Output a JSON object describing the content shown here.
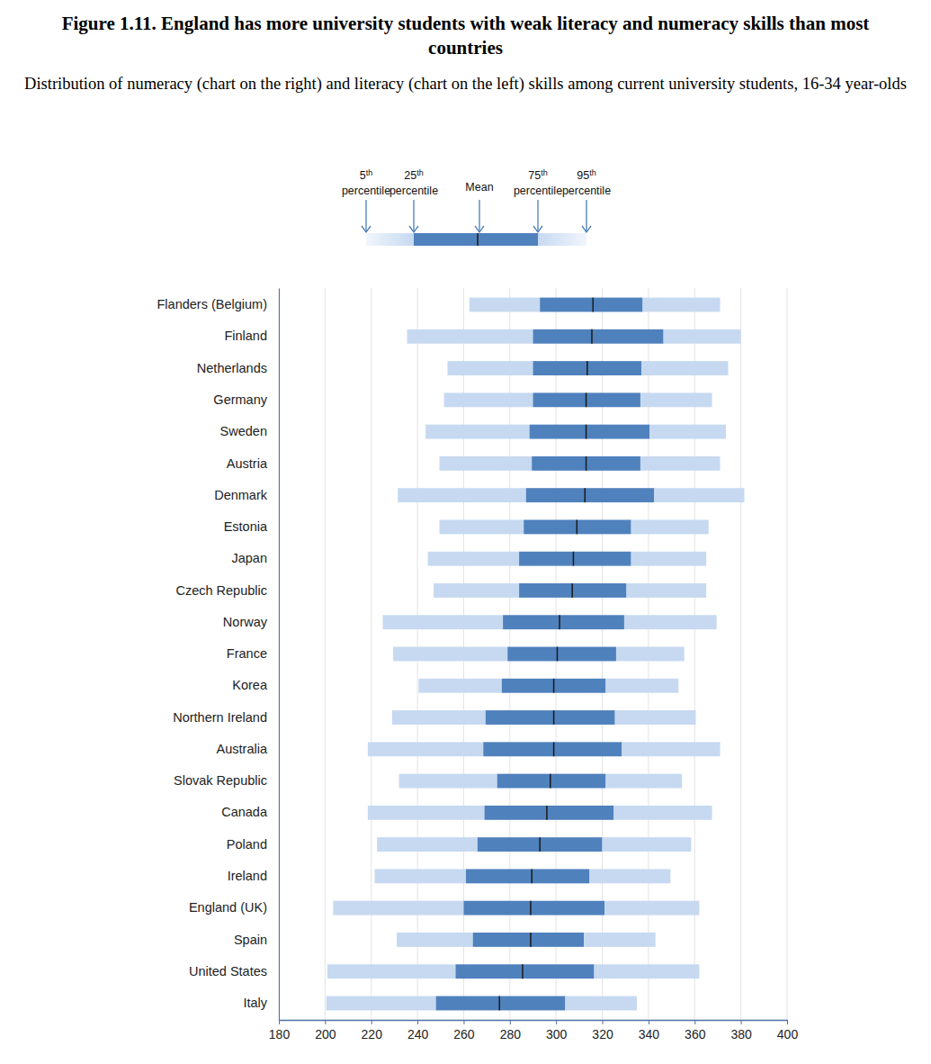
{
  "chart_data": {
    "type": "box",
    "title": "Figure 1.11. England has more university students with weak literacy and numeracy skills than most countries",
    "subtitle": "Distribution of numeracy (chart on the right) and literacy (chart on the left) skills among current university students, 16-34 year-olds",
    "orientation": "horizontal",
    "legend": "top",
    "grid": true,
    "categories": [
      "Flanders (Belgium)",
      "Finland",
      "Netherlands",
      "Germany",
      "Sweden",
      "Austria",
      "Denmark",
      "Estonia",
      "Japan",
      "Czech Republic",
      "Norway",
      "France",
      "Korea",
      "Northern Ireland",
      "Australia",
      "Slovak Republic",
      "Canada",
      "Poland",
      "Ireland",
      "England (UK)",
      "Spain",
      "United States",
      "Italy"
    ],
    "series": [
      {
        "name": "5th percentile",
        "color": "#c6d9f1",
        "values": [
          262.5,
          235.5,
          253,
          251.5,
          243.5,
          249.5,
          231.5,
          249.5,
          244.5,
          247,
          225,
          229.5,
          240.5,
          229,
          218.5,
          232,
          218.5,
          222.5,
          221.5,
          203.5,
          231,
          201,
          200.5
        ]
      },
      {
        "name": "25th percentile",
        "color": "#4f81bd",
        "values": [
          293,
          290,
          290,
          290,
          288.5,
          289.5,
          287,
          286,
          284,
          284,
          277,
          279,
          276.5,
          269.5,
          268.5,
          274.5,
          269,
          266,
          261,
          260,
          264,
          256.5,
          248
        ]
      },
      {
        "name": "Mean",
        "color": "#1a1a1a",
        "values": [
          316,
          315.5,
          313.5,
          313,
          313,
          313,
          312.5,
          309,
          307.5,
          307,
          301.5,
          300.5,
          299,
          299,
          299,
          297.5,
          296,
          293,
          289.5,
          289,
          289,
          285.5,
          275.5
        ]
      },
      {
        "name": "75th percentile",
        "color": "#4f81bd",
        "values": [
          337.5,
          346.5,
          337,
          336.5,
          340.5,
          336.5,
          342.5,
          332.5,
          332.5,
          330.5,
          329.5,
          326,
          321.5,
          325.5,
          328.5,
          321.5,
          325,
          320,
          314.5,
          321,
          312,
          316.5,
          304
        ]
      },
      {
        "name": "95th percentile",
        "color": "#c6d9f1",
        "values": [
          371,
          380,
          374.5,
          367.5,
          373.5,
          371,
          381.5,
          366,
          365,
          365,
          369.5,
          355.5,
          353,
          360.5,
          371,
          354.5,
          367.5,
          358.5,
          349.5,
          362,
          343,
          362,
          335
        ]
      }
    ],
    "xlim": [
      180,
      400
    ],
    "xticks": [
      180,
      200,
      220,
      240,
      260,
      280,
      300,
      320,
      340,
      360,
      380,
      400
    ]
  }
}
